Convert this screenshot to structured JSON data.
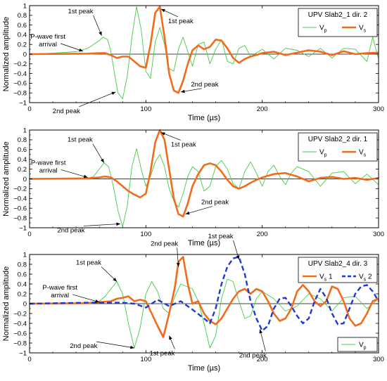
{
  "figure": {
    "xlabel": "Time (µs)",
    "ylabel": "Normalized amplitude",
    "colors": {
      "vp": "#44cc44",
      "vs": "#f26b1d",
      "vs2": "#1f39d6",
      "zero_line": "#000000"
    }
  },
  "chart_data": [
    {
      "type": "line",
      "title": "UPV Slab2_1 dir. 2",
      "xlim": [
        0,
        300
      ],
      "ylim": [
        -1,
        1
      ],
      "xticks": [
        0,
        100,
        200,
        300
      ],
      "yticks": [
        -1,
        -0.8,
        -0.6,
        -0.4,
        -0.2,
        0,
        0.2,
        0.4,
        0.6,
        0.8,
        1
      ],
      "xlabel": "Time (µs)",
      "ylabel": "Normalized amplitude",
      "legend": "top-right",
      "series": [
        {
          "name": "Vp",
          "label_main": "V",
          "label_sub": "p",
          "color": "#44cc44",
          "style": "thin",
          "x": [
            0,
            20,
            40,
            50,
            55,
            60,
            63,
            67,
            70,
            73,
            76,
            80,
            84,
            88,
            92,
            96,
            100,
            104,
            108,
            112,
            116,
            120,
            124,
            128,
            132,
            136,
            140,
            145,
            150,
            155,
            160,
            165,
            170,
            175,
            180,
            185,
            190,
            200,
            210,
            220,
            230,
            240,
            250,
            260,
            270,
            280,
            290,
            295,
            300
          ],
          "y": [
            0,
            0.02,
            0.05,
            0.12,
            0.2,
            0.28,
            0.35,
            0.3,
            0.05,
            -0.4,
            -0.8,
            -0.92,
            -0.45,
            0.35,
            0.98,
            0.5,
            -0.35,
            -0.5,
            0.25,
            0.55,
            0.2,
            -0.3,
            -0.35,
            0.1,
            0.35,
            0.05,
            -0.25,
            0.2,
            0.25,
            -0.2,
            0.1,
            0.3,
            -0.15,
            -0.2,
            0.12,
            0.18,
            -0.05,
            0.1,
            -0.1,
            0.12,
            0.08,
            -0.05,
            0.12,
            -0.08,
            0.12,
            0.1,
            -0.15,
            0.35,
            -0.1
          ]
        },
        {
          "name": "Vs",
          "label_main": "V",
          "label_sub": "s",
          "color": "#f26b1d",
          "style": "thick",
          "x": [
            0,
            50,
            60,
            65,
            70,
            75,
            80,
            85,
            90,
            95,
            100,
            104,
            108,
            112,
            116,
            120,
            124,
            128,
            132,
            136,
            140,
            145,
            150,
            155,
            160,
            165,
            170,
            175,
            180,
            185,
            190,
            200,
            210,
            220,
            230,
            240,
            250,
            260,
            270,
            280,
            290,
            300
          ],
          "y": [
            0,
            0.01,
            0.02,
            0.02,
            -0.02,
            -0.08,
            -0.05,
            -0.05,
            -0.15,
            -0.25,
            -0.28,
            0.2,
            0.85,
            0.98,
            0.35,
            -0.4,
            -0.75,
            -0.8,
            -0.55,
            -0.2,
            0.08,
            0.18,
            0.1,
            0.15,
            0.3,
            0.28,
            0.12,
            -0.08,
            -0.18,
            -0.1,
            -0.05,
            0.02,
            0.05,
            -0.02,
            0.03,
            0.08,
            0.05,
            -0.02,
            0.06,
            0,
            0.02,
            0.03
          ]
        }
      ],
      "annotations": [
        {
          "text": "1st peak",
          "line2": "",
          "x": 62,
          "y": 0.38
        },
        {
          "text": "P-wave first",
          "line2": "arrival",
          "x": 46,
          "y": 0.06
        },
        {
          "text": "2nd peak",
          "line2": "",
          "x": 74,
          "y": -0.78
        },
        {
          "text": "1st peak",
          "line2": "",
          "x": 113,
          "y": 0.93
        },
        {
          "text": "2nd peak",
          "line2": "",
          "x": 130,
          "y": -0.78
        }
      ]
    },
    {
      "type": "line",
      "title": "UPV Slab2_2 dir. 1",
      "xlim": [
        0,
        300
      ],
      "ylim": [
        -1,
        1
      ],
      "xticks": [
        0,
        100,
        200,
        300
      ],
      "yticks": [
        -1,
        -0.8,
        -0.6,
        -0.4,
        -0.2,
        0,
        0.2,
        0.4,
        0.6,
        0.8,
        1
      ],
      "xlabel": "Time (µs)",
      "ylabel": "Normalized amplitude",
      "legend": "top-right",
      "series": [
        {
          "name": "Vp",
          "label_main": "V",
          "label_sub": "p",
          "color": "#44cc44",
          "style": "thin",
          "x": [
            0,
            50,
            55,
            60,
            64,
            68,
            72,
            76,
            80,
            84,
            88,
            92,
            96,
            100,
            104,
            108,
            112,
            116,
            120,
            124,
            128,
            132,
            136,
            140,
            145,
            150,
            155,
            160,
            165,
            170,
            175,
            180,
            185,
            190,
            195,
            200,
            205,
            210,
            215,
            220,
            225,
            230,
            240,
            250,
            260,
            270,
            280,
            290,
            300
          ],
          "y": [
            0,
            0.01,
            0.05,
            0.2,
            0.33,
            0.25,
            -0.15,
            -0.65,
            -0.98,
            -0.55,
            0.25,
            0.62,
            0.2,
            -0.15,
            0.05,
            0.35,
            0.5,
            0.25,
            -0.2,
            -0.45,
            -0.58,
            -0.3,
            0.05,
            0.25,
            0.15,
            -0.25,
            -0.15,
            0.25,
            0.38,
            0.2,
            -0.1,
            -0.2,
            0.15,
            0.35,
            0.12,
            -0.15,
            0.15,
            0.28,
            0.05,
            -0.12,
            0.12,
            0.25,
            0.15,
            -0.15,
            0.12,
            0.15,
            -0.1,
            0.1,
            -0.12
          ]
        },
        {
          "name": "Vs",
          "label_main": "V",
          "label_sub": "s",
          "color": "#f26b1d",
          "style": "thick",
          "x": [
            0,
            50,
            55,
            60,
            65,
            70,
            75,
            80,
            85,
            90,
            95,
            100,
            104,
            108,
            112,
            116,
            120,
            124,
            128,
            132,
            136,
            140,
            145,
            150,
            155,
            160,
            165,
            170,
            175,
            180,
            185,
            190,
            195,
            200,
            210,
            220,
            230,
            240,
            250,
            260,
            270,
            280,
            290,
            300
          ],
          "y": [
            0,
            0.01,
            0.02,
            0.03,
            0.05,
            0.03,
            -0.05,
            -0.15,
            -0.25,
            -0.32,
            -0.38,
            -0.3,
            0.15,
            0.75,
            1.0,
            0.8,
            0.2,
            -0.4,
            -0.72,
            -0.77,
            -0.5,
            -0.15,
            0.1,
            0.28,
            0.32,
            0.28,
            0.15,
            -0.02,
            -0.15,
            -0.2,
            -0.15,
            -0.08,
            -0.02,
            0.03,
            0.1,
            0.12,
            0.05,
            -0.05,
            0.02,
            0.04,
            0,
            0.02,
            -0.02,
            0.02
          ]
        }
      ],
      "annotations": [
        {
          "text": "1st peak",
          "line2": "",
          "x": 64,
          "y": 0.33
        },
        {
          "text": "P-wave first",
          "line2": "arrival",
          "x": 50,
          "y": 0.03
        },
        {
          "text": "2nd peak",
          "line2": "",
          "x": 78,
          "y": -0.92
        },
        {
          "text": "1st peak",
          "line2": "",
          "x": 113,
          "y": 0.95
        },
        {
          "text": "2nd peak",
          "line2": "",
          "x": 134,
          "y": -0.72
        }
      ]
    },
    {
      "type": "line",
      "title": "UPV Slab2_4 dir. 3",
      "xlim": [
        0,
        300
      ],
      "ylim": [
        -1,
        1
      ],
      "xticks": [
        0,
        100,
        200,
        300
      ],
      "yticks": [
        -1,
        -0.8,
        -0.6,
        -0.4,
        -0.2,
        0,
        0.2,
        0.4,
        0.6,
        0.8,
        1
      ],
      "xlabel": "Time (µs)",
      "ylabel": "Normalized amplitude",
      "legend": "top-right",
      "series": [
        {
          "name": "Vs 1",
          "label_main": "V",
          "label_sub": "s",
          "label_tail": " 1",
          "color": "#f26b1d",
          "style": "thick",
          "x": [
            0,
            50,
            60,
            70,
            75,
            80,
            85,
            90,
            95,
            100,
            105,
            110,
            115,
            120,
            125,
            128,
            132,
            136,
            140,
            145,
            150,
            155,
            160,
            165,
            170,
            175,
            180,
            185,
            190,
            195,
            200,
            205,
            210,
            215,
            220,
            225,
            230,
            235,
            240,
            245,
            250,
            255,
            260,
            265,
            270,
            275,
            280,
            285,
            290,
            295,
            300
          ],
          "y": [
            0,
            0.01,
            0.03,
            0.05,
            0.1,
            0.12,
            0.15,
            0.05,
            0.08,
            0.05,
            -0.2,
            -0.45,
            -0.68,
            -0.2,
            0.35,
            0.85,
            0.95,
            0.4,
            0,
            0.05,
            -0.2,
            -0.35,
            -0.42,
            -0.3,
            -0.1,
            0.1,
            0.25,
            0.3,
            0.2,
            0.3,
            0.25,
            0.05,
            -0.2,
            -0.35,
            -0.3,
            -0.1,
            0.25,
            0.38,
            0.25,
            0.05,
            -0.05,
            0.05,
            0.35,
            0.3,
            0.05,
            -0.3,
            -0.45,
            -0.4,
            -0.2,
            0.05,
            0.1
          ]
        },
        {
          "name": "Vs 2",
          "label_main": "V",
          "label_sub": "s",
          "label_tail": " 2",
          "color": "#1f39d6",
          "style": "dashed",
          "x": [
            0,
            50,
            70,
            80,
            90,
            100,
            110,
            120,
            130,
            140,
            150,
            155,
            160,
            165,
            170,
            175,
            180,
            185,
            190,
            195,
            200,
            205,
            210,
            215,
            220,
            225,
            230,
            235,
            240,
            245,
            250,
            255,
            260,
            265,
            270,
            275,
            280,
            285,
            290,
            295,
            300
          ],
          "y": [
            0,
            0.02,
            0.02,
            0.02,
            0,
            -0.08,
            0.08,
            -0.05,
            0.05,
            -0.12,
            -0.3,
            -0.4,
            -0.1,
            0.4,
            0.75,
            0.92,
            0.95,
            0.6,
            0.05,
            -0.3,
            -0.55,
            -0.45,
            -0.1,
            0.1,
            0.12,
            -0.05,
            -0.25,
            -0.4,
            -0.3,
            0.05,
            0.3,
            0.12,
            -0.2,
            -0.42,
            -0.4,
            -0.1,
            0.2,
            0.35,
            0.38,
            0.25,
            0.05
          ]
        },
        {
          "name": "Vp",
          "label_main": "V",
          "label_sub": "p",
          "color": "#44cc44",
          "style": "thin",
          "x": [
            0,
            50,
            60,
            65,
            70,
            75,
            80,
            85,
            90,
            95,
            100,
            105,
            110,
            115,
            120,
            125,
            130,
            135,
            140,
            145,
            150,
            155,
            160,
            165,
            170,
            175,
            180,
            185,
            190,
            195,
            200,
            210,
            220,
            230,
            240,
            250,
            260,
            270,
            280,
            290,
            300
          ],
          "y": [
            0,
            0.02,
            0.05,
            0.15,
            0.3,
            0.45,
            0.2,
            -0.4,
            -0.9,
            -0.5,
            0.2,
            0.45,
            0.25,
            -0.1,
            -0.2,
            0.15,
            0.4,
            0.35,
            0.3,
            0.05,
            -0.4,
            -0.9,
            -0.65,
            0.1,
            0.5,
            0.45,
            0.05,
            -0.3,
            -0.25,
            0.1,
            0.25,
            0.1,
            -0.15,
            -0.05,
            0.2,
            0.1,
            -0.15,
            0.12,
            0.15,
            -0.1,
            0.1
          ]
        }
      ],
      "annotations": [
        {
          "text": "1st peak",
          "line2": "",
          "x": 75,
          "y": 0.45
        },
        {
          "text": "P-wave first",
          "line2": "arrival",
          "x": 60,
          "y": 0.03
        },
        {
          "text": "2nd peak",
          "line2": "",
          "x": 90,
          "y": -0.9
        },
        {
          "text": "2nd peak",
          "line2": "",
          "x": 128,
          "y": 0.75
        },
        {
          "text": "1st peak",
          "line2": "",
          "x": 120,
          "y": -0.65
        },
        {
          "text": "1st peak",
          "line2": "",
          "x": 180,
          "y": 0.9
        },
        {
          "text": "2nd peak",
          "line2": "",
          "x": 198,
          "y": -0.52
        }
      ]
    }
  ]
}
